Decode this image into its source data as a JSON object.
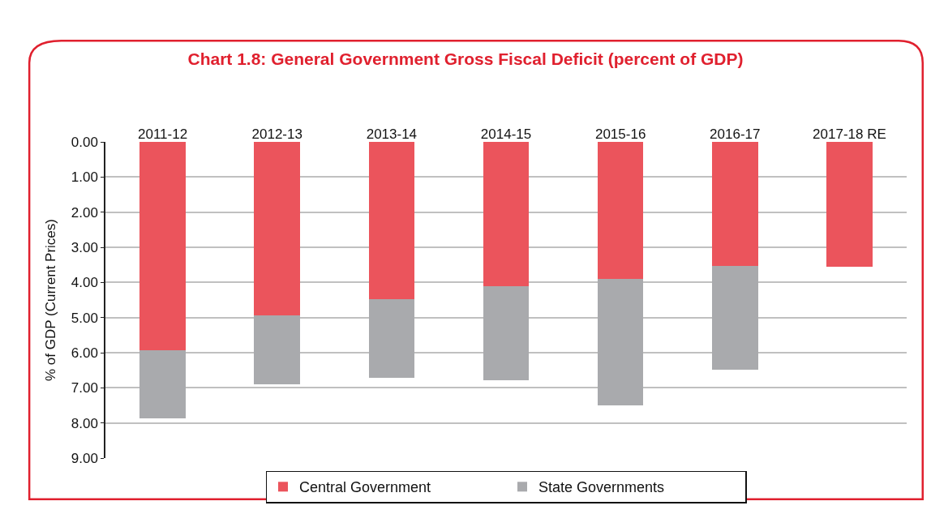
{
  "chart_data": {
    "type": "bar",
    "title": "Chart 1.8: General Government Gross Fiscal Deficit (percent of GDP)",
    "ylabel": "% of GDP (Current Prices)",
    "categories": [
      "2011-12",
      "2012-13",
      "2013-14",
      "2014-15",
      "2015-16",
      "2016-17",
      "2017-18 RE"
    ],
    "series": [
      {
        "name": "Central Government",
        "color": "#eb545c",
        "values": [
          5.92,
          4.94,
          4.47,
          4.1,
          3.89,
          3.53,
          3.55
        ]
      },
      {
        "name": "State Governments",
        "color": "#a9aaad",
        "values": [
          1.96,
          1.97,
          2.25,
          2.68,
          3.61,
          2.96,
          null
        ]
      }
    ],
    "stacked": true,
    "ylim": [
      9,
      0
    ],
    "yticks": [
      {
        "value": 0,
        "label": "0.00"
      },
      {
        "value": 1,
        "label": "1.00"
      },
      {
        "value": 2,
        "label": "2.00"
      },
      {
        "value": 3,
        "label": "3.00"
      },
      {
        "value": 4,
        "label": "4.00"
      },
      {
        "value": 5,
        "label": "5.00"
      },
      {
        "value": 6,
        "label": "6.00"
      },
      {
        "value": 7,
        "label": "7.00"
      },
      {
        "value": 8,
        "label": "8.00"
      },
      {
        "value": 9,
        "label": "9.00"
      }
    ],
    "grid": "y",
    "legend": "bottom"
  }
}
